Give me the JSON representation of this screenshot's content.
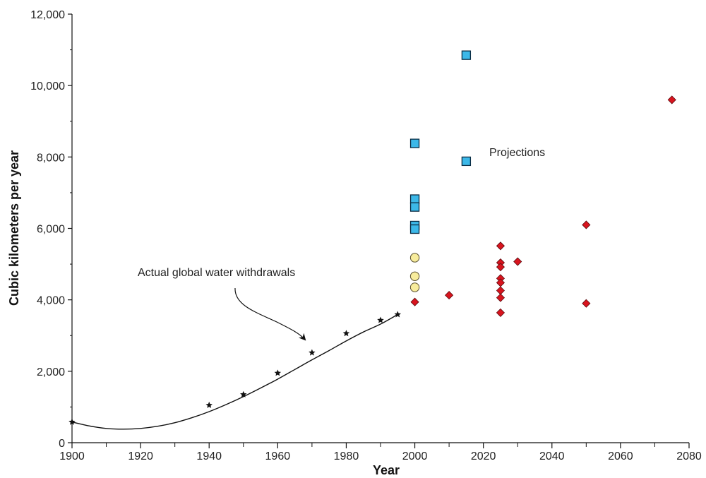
{
  "chart_data": {
    "type": "scatter",
    "title": "",
    "xlabel": "Year",
    "ylabel": "Cubic kilometers per year",
    "xlim": [
      1900,
      2080
    ],
    "ylim": [
      0,
      12000
    ],
    "x_ticks": [
      "1900",
      "1920",
      "1940",
      "1960",
      "1980",
      "2000",
      "2020",
      "2040",
      "2060",
      "2080"
    ],
    "y_ticks": [
      "0",
      "2,000",
      "4,000",
      "6,000",
      "8,000",
      "10,000",
      "12,000"
    ],
    "grid": false,
    "legend": "none",
    "series": [
      {
        "kind": "line-with-stars",
        "color": "#111111",
        "points": [
          [
            1900,
            580
          ],
          [
            1940,
            1050
          ],
          [
            1950,
            1350
          ],
          [
            1960,
            1950
          ],
          [
            1970,
            2520
          ],
          [
            1980,
            3060
          ],
          [
            1990,
            3430
          ],
          [
            1995,
            3590
          ]
        ],
        "curve": [
          [
            1900,
            580
          ],
          [
            1905,
            470
          ],
          [
            1910,
            400
          ],
          [
            1915,
            380
          ],
          [
            1920,
            400
          ],
          [
            1925,
            460
          ],
          [
            1930,
            560
          ],
          [
            1935,
            700
          ],
          [
            1940,
            870
          ],
          [
            1945,
            1070
          ],
          [
            1950,
            1290
          ],
          [
            1955,
            1530
          ],
          [
            1960,
            1780
          ],
          [
            1965,
            2050
          ],
          [
            1970,
            2320
          ],
          [
            1975,
            2580
          ],
          [
            1980,
            2850
          ],
          [
            1985,
            3100
          ],
          [
            1990,
            3320
          ],
          [
            1995,
            3590
          ]
        ]
      },
      {
        "kind": "square",
        "color": "#3cb8e8",
        "points": [
          [
            2015,
            10850
          ],
          [
            2000,
            8380
          ],
          [
            2015,
            7880
          ],
          [
            2000,
            6820
          ],
          [
            2000,
            6600
          ],
          [
            2000,
            6080
          ],
          [
            2000,
            5980
          ]
        ]
      },
      {
        "kind": "circle",
        "color": "#f7ec9c",
        "points": [
          [
            2000,
            5180
          ],
          [
            2000,
            4660
          ],
          [
            2000,
            4350
          ]
        ]
      },
      {
        "kind": "diamond",
        "color": "#d8141e",
        "points": [
          [
            2000,
            3940
          ],
          [
            2010,
            4130
          ],
          [
            2025,
            5510
          ],
          [
            2025,
            5040
          ],
          [
            2025,
            4920
          ],
          [
            2025,
            4600
          ],
          [
            2025,
            4480
          ],
          [
            2025,
            4260
          ],
          [
            2025,
            4060
          ],
          [
            2025,
            3640
          ],
          [
            2030,
            5070
          ],
          [
            2050,
            6100
          ],
          [
            2050,
            3900
          ],
          [
            2075,
            9600
          ]
        ]
      }
    ],
    "annotations": {
      "actual": "Actual global water withdrawals",
      "projections": "Projections"
    }
  }
}
